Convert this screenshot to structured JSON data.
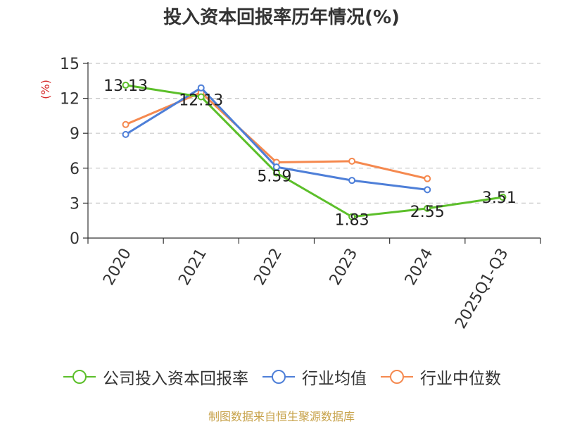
{
  "chart_data": {
    "type": "line",
    "title": "投入资本回报率历年情况(%)",
    "ylabel": "(%)",
    "xlabel": "",
    "categories": [
      "2020",
      "2021",
      "2022",
      "2023",
      "2024",
      "2025Q1-Q3"
    ],
    "yticks": [
      0,
      3,
      6,
      9,
      12,
      15
    ],
    "ylim": [
      0,
      15
    ],
    "grid": true,
    "legend_position": "bottom",
    "series": [
      {
        "name": "公司投入资本回报率",
        "color": "#5cbf2a",
        "values": [
          13.13,
          12.13,
          5.59,
          1.83,
          2.55,
          3.51
        ],
        "labels": [
          "13.13",
          "12.13",
          "5.59",
          "1.83",
          "2.55",
          "3.51"
        ]
      },
      {
        "name": "行业均值",
        "color": "#4e7fd8",
        "values": [
          8.9,
          12.9,
          6.1,
          4.95,
          4.15,
          null
        ]
      },
      {
        "name": "行业中位数",
        "color": "#f5894f",
        "values": [
          9.75,
          12.5,
          6.5,
          6.6,
          5.1,
          null
        ]
      }
    ]
  },
  "source": "制图数据来自恒生聚源数据库"
}
